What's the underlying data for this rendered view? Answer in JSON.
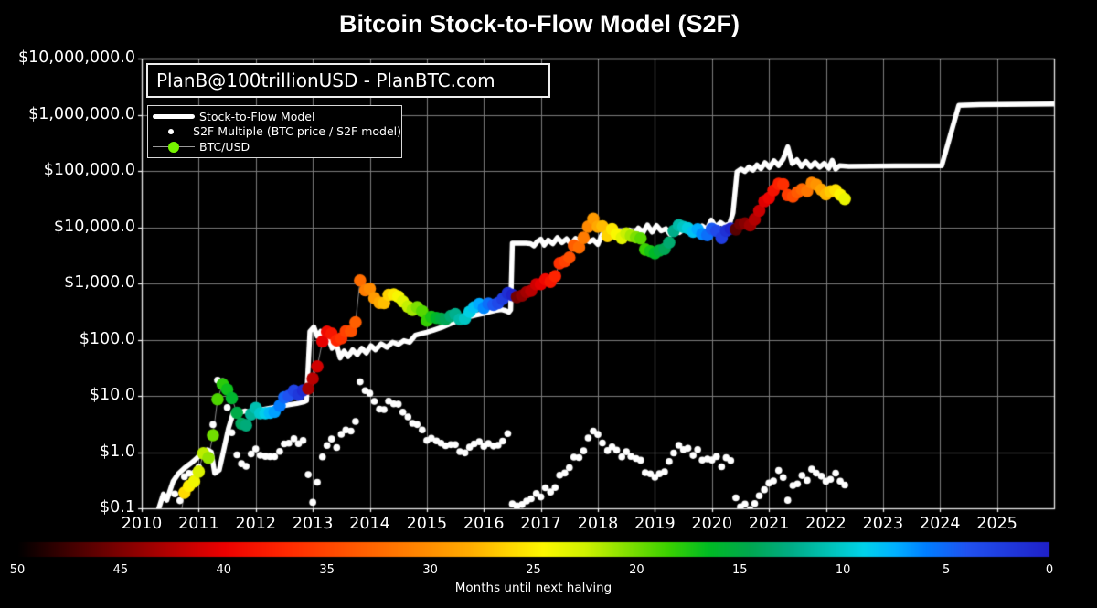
{
  "title": "Bitcoin Stock-to-Flow Model (S2F)",
  "annotation": "PlanB@100trillionUSD - PlanBTC.com",
  "legend": {
    "items": [
      {
        "label": "Stock-to-Flow Model",
        "marker": "thick-white-line",
        "color": "#ffffff"
      },
      {
        "label": "S2F Multiple (BTC price / S2F model)",
        "marker": "small-white-dot",
        "color": "#ffffff"
      },
      {
        "label": "BTC/USD",
        "marker": "green-dot-on-line",
        "color": "#76f400"
      }
    ]
  },
  "axes": {
    "y_ticks": [
      {
        "label": "$10,000,000.0",
        "value": 10000000
      },
      {
        "label": "$1,000,000.0",
        "value": 1000000
      },
      {
        "label": "$100,000.0",
        "value": 100000
      },
      {
        "label": "$10,000.0",
        "value": 10000
      },
      {
        "label": "$1,000.0",
        "value": 1000
      },
      {
        "label": "$100.0",
        "value": 100
      },
      {
        "label": "$10.0",
        "value": 10
      },
      {
        "label": "$1.0",
        "value": 1
      },
      {
        "label": "$0.1",
        "value": 0.1
      }
    ],
    "x_ticks": [
      2010,
      2011,
      2012,
      2013,
      2014,
      2015,
      2016,
      2017,
      2018,
      2019,
      2020,
      2021,
      2022,
      2023,
      2024,
      2025
    ],
    "x_range": [
      2010,
      2026
    ],
    "y_range": [
      0.1,
      10000000
    ],
    "y_scale": "log",
    "grid": true
  },
  "colorbar": {
    "caption": "Months until next halving",
    "ticks": [
      50,
      45,
      40,
      35,
      30,
      25,
      20,
      15,
      10,
      5,
      0
    ],
    "range": [
      50,
      0
    ],
    "stops": [
      [
        0.0,
        "#000000"
      ],
      [
        0.05,
        "#400000"
      ],
      [
        0.1,
        "#7e0000"
      ],
      [
        0.15,
        "#b60000"
      ],
      [
        0.2,
        "#ec0000"
      ],
      [
        0.26,
        "#ff2800"
      ],
      [
        0.32,
        "#ff5400"
      ],
      [
        0.38,
        "#ff8000"
      ],
      [
        0.44,
        "#ffae00"
      ],
      [
        0.48,
        "#ffda00"
      ],
      [
        0.51,
        "#fdf800"
      ],
      [
        0.55,
        "#d0f200"
      ],
      [
        0.59,
        "#84e000"
      ],
      [
        0.63,
        "#3cd200"
      ],
      [
        0.67,
        "#00bb24"
      ],
      [
        0.71,
        "#00a750"
      ],
      [
        0.75,
        "#00ac86"
      ],
      [
        0.79,
        "#00c4bc"
      ],
      [
        0.82,
        "#00d2ea"
      ],
      [
        0.85,
        "#00b2ff"
      ],
      [
        0.88,
        "#007eff"
      ],
      [
        0.92,
        "#2052f0"
      ],
      [
        1.0,
        "#1f20c8"
      ]
    ]
  },
  "chart_data": {
    "type": "line+scatter",
    "title": "Bitcoin Stock-to-Flow Model (S2F)",
    "halvings": [
      2012.912,
      2016.523,
      2020.362,
      2024.302
    ],
    "model_line": {
      "name": "Stock-to-Flow Model",
      "style": "thick-white-line, steps up ~10x at each halving",
      "points": [
        [
          2010.3,
          0.1
        ],
        [
          2010.38,
          0.18
        ],
        [
          2010.44,
          0.14
        ],
        [
          2010.55,
          0.3
        ],
        [
          2010.65,
          0.42
        ],
        [
          2010.75,
          0.52
        ],
        [
          2010.85,
          0.62
        ],
        [
          2010.95,
          0.75
        ],
        [
          2011.05,
          0.95
        ],
        [
          2011.15,
          1.1
        ],
        [
          2011.22,
          1.0
        ],
        [
          2011.28,
          0.42
        ],
        [
          2011.36,
          0.48
        ],
        [
          2011.44,
          1.1
        ],
        [
          2011.52,
          2.6
        ],
        [
          2011.6,
          4.8
        ],
        [
          2011.67,
          5.6
        ],
        [
          2011.74,
          5.1
        ],
        [
          2011.82,
          5.4
        ],
        [
          2011.9,
          5.0
        ],
        [
          2011.98,
          5.3
        ],
        [
          2012.12,
          5.7
        ],
        [
          2012.27,
          6.1
        ],
        [
          2012.42,
          6.5
        ],
        [
          2012.57,
          6.9
        ],
        [
          2012.72,
          7.3
        ],
        [
          2012.84,
          7.8
        ],
        [
          2012.89,
          8.2
        ],
        [
          2012.95,
          140
        ],
        [
          2013.02,
          168
        ],
        [
          2013.08,
          115
        ],
        [
          2013.14,
          140
        ],
        [
          2013.2,
          92
        ],
        [
          2013.27,
          112
        ],
        [
          2013.34,
          70
        ],
        [
          2013.41,
          88
        ],
        [
          2013.48,
          47
        ],
        [
          2013.55,
          63
        ],
        [
          2013.62,
          50
        ],
        [
          2013.7,
          66
        ],
        [
          2013.78,
          54
        ],
        [
          2013.86,
          70
        ],
        [
          2013.94,
          58
        ],
        [
          2014.02,
          78
        ],
        [
          2014.1,
          66
        ],
        [
          2014.2,
          84
        ],
        [
          2014.3,
          73
        ],
        [
          2014.4,
          90
        ],
        [
          2014.5,
          82
        ],
        [
          2014.6,
          96
        ],
        [
          2014.7,
          90
        ],
        [
          2014.8,
          120
        ],
        [
          2014.9,
          128
        ],
        [
          2015.0,
          135
        ],
        [
          2015.12,
          148
        ],
        [
          2015.26,
          165
        ],
        [
          2015.4,
          190
        ],
        [
          2015.55,
          220
        ],
        [
          2015.7,
          250
        ],
        [
          2015.85,
          272
        ],
        [
          2016.0,
          292
        ],
        [
          2016.1,
          312
        ],
        [
          2016.2,
          330
        ],
        [
          2016.3,
          345
        ],
        [
          2016.38,
          328
        ],
        [
          2016.44,
          308
        ],
        [
          2016.47,
          340
        ],
        [
          2016.5,
          5200
        ],
        [
          2016.62,
          5200
        ],
        [
          2016.74,
          5200
        ],
        [
          2016.82,
          5100
        ],
        [
          2016.88,
          4650
        ],
        [
          2016.94,
          5600
        ],
        [
          2017.0,
          6100
        ],
        [
          2017.06,
          4800
        ],
        [
          2017.13,
          5900
        ],
        [
          2017.21,
          5100
        ],
        [
          2017.29,
          6500
        ],
        [
          2017.37,
          5300
        ],
        [
          2017.45,
          6200
        ],
        [
          2017.53,
          5000
        ],
        [
          2017.61,
          6300
        ],
        [
          2017.69,
          5200
        ],
        [
          2017.77,
          6500
        ],
        [
          2017.85,
          5500
        ],
        [
          2017.92,
          6000
        ],
        [
          2018.0,
          4950
        ],
        [
          2018.07,
          7300
        ],
        [
          2018.15,
          6200
        ],
        [
          2018.23,
          7800
        ],
        [
          2018.31,
          6500
        ],
        [
          2018.39,
          8300
        ],
        [
          2018.47,
          7000
        ],
        [
          2018.55,
          8900
        ],
        [
          2018.63,
          7600
        ],
        [
          2018.71,
          9700
        ],
        [
          2018.79,
          8000
        ],
        [
          2018.87,
          10900
        ],
        [
          2018.95,
          8200
        ],
        [
          2019.03,
          10700
        ],
        [
          2019.11,
          8600
        ],
        [
          2019.19,
          9400
        ],
        [
          2019.27,
          7400
        ],
        [
          2019.35,
          9500
        ],
        [
          2019.43,
          8000
        ],
        [
          2019.51,
          9300
        ],
        [
          2019.59,
          8100
        ],
        [
          2019.67,
          9500
        ],
        [
          2019.75,
          8300
        ],
        [
          2019.83,
          10500
        ],
        [
          2019.91,
          9100
        ],
        [
          2019.99,
          13400
        ],
        [
          2020.07,
          10100
        ],
        [
          2020.15,
          12100
        ],
        [
          2020.23,
          10700
        ],
        [
          2020.31,
          11500
        ],
        [
          2020.37,
          18000
        ],
        [
          2020.44,
          96000
        ],
        [
          2020.51,
          108000
        ],
        [
          2020.58,
          98000
        ],
        [
          2020.65,
          118000
        ],
        [
          2020.72,
          103000
        ],
        [
          2020.79,
          128000
        ],
        [
          2020.86,
          110000
        ],
        [
          2020.93,
          140000
        ],
        [
          2021.01,
          115000
        ],
        [
          2021.09,
          152000
        ],
        [
          2021.17,
          125000
        ],
        [
          2021.25,
          163000
        ],
        [
          2021.33,
          268000
        ],
        [
          2021.41,
          135000
        ],
        [
          2021.49,
          158000
        ],
        [
          2021.57,
          120000
        ],
        [
          2021.65,
          147000
        ],
        [
          2021.73,
          118000
        ],
        [
          2021.81,
          141000
        ],
        [
          2021.89,
          117000
        ],
        [
          2021.97,
          137000
        ],
        [
          2022.05,
          112000
        ],
        [
          2022.11,
          154000
        ],
        [
          2022.17,
          108000
        ],
        [
          2022.24,
          124000
        ],
        [
          2022.4,
          121000
        ],
        [
          2023.2,
          122500
        ],
        [
          2024.03,
          124500
        ],
        [
          2024.33,
          1470000
        ],
        [
          2024.7,
          1510000
        ],
        [
          2026.0,
          1555000
        ]
      ]
    },
    "btc_monthly": {
      "name": "BTC/USD",
      "style": "large dots colored by months until next halving, thin gray connector line",
      "points": [
        [
          2010.58,
          0.06
        ],
        [
          2010.67,
          0.06
        ],
        [
          2010.75,
          0.19
        ],
        [
          2010.83,
          0.25
        ],
        [
          2010.92,
          0.3
        ],
        [
          2011.0,
          0.45
        ],
        [
          2011.08,
          0.95
        ],
        [
          2011.17,
          0.79
        ],
        [
          2011.25,
          2.0
        ],
        [
          2011.33,
          8.7
        ],
        [
          2011.42,
          16.1
        ],
        [
          2011.5,
          13.0
        ],
        [
          2011.58,
          9.1
        ],
        [
          2011.67,
          5.0
        ],
        [
          2011.75,
          3.2
        ],
        [
          2011.83,
          3.0
        ],
        [
          2011.92,
          4.7
        ],
        [
          2012.0,
          6.1
        ],
        [
          2012.08,
          4.9
        ],
        [
          2012.17,
          4.9
        ],
        [
          2012.25,
          5.0
        ],
        [
          2012.33,
          5.2
        ],
        [
          2012.42,
          6.7
        ],
        [
          2012.5,
          9.4
        ],
        [
          2012.58,
          10.0
        ],
        [
          2012.67,
          12.4
        ],
        [
          2012.75,
          10.5
        ],
        [
          2012.83,
          12.5
        ],
        [
          2012.92,
          13.5
        ],
        [
          2013.0,
          20.4
        ],
        [
          2013.08,
          33.4
        ],
        [
          2013.17,
          93
        ],
        [
          2013.25,
          139
        ],
        [
          2013.33,
          128
        ],
        [
          2013.42,
          97
        ],
        [
          2013.5,
          106
        ],
        [
          2013.58,
          141
        ],
        [
          2013.67,
          141
        ],
        [
          2013.75,
          204
        ],
        [
          2013.83,
          1130
        ],
        [
          2013.92,
          755
        ],
        [
          2014.0,
          806
        ],
        [
          2014.08,
          550
        ],
        [
          2014.17,
          454
        ],
        [
          2014.25,
          446
        ],
        [
          2014.33,
          627
        ],
        [
          2014.42,
          635
        ],
        [
          2014.5,
          583
        ],
        [
          2014.58,
          477
        ],
        [
          2014.67,
          387
        ],
        [
          2014.75,
          338
        ],
        [
          2014.83,
          378
        ],
        [
          2014.92,
          320
        ],
        [
          2015.0,
          217
        ],
        [
          2015.08,
          254
        ],
        [
          2015.17,
          244
        ],
        [
          2015.25,
          236
        ],
        [
          2015.33,
          230
        ],
        [
          2015.42,
          263
        ],
        [
          2015.5,
          284
        ],
        [
          2015.58,
          230
        ],
        [
          2015.67,
          236
        ],
        [
          2015.75,
          314
        ],
        [
          2015.83,
          377
        ],
        [
          2015.92,
          430
        ],
        [
          2016.0,
          368
        ],
        [
          2016.08,
          437
        ],
        [
          2016.17,
          416
        ],
        [
          2016.25,
          448
        ],
        [
          2016.33,
          531
        ],
        [
          2016.42,
          673
        ],
        [
          2016.5,
          624
        ],
        [
          2016.58,
          573
        ],
        [
          2016.67,
          609
        ],
        [
          2016.75,
          700
        ],
        [
          2016.83,
          742
        ],
        [
          2016.92,
          963
        ],
        [
          2017.0,
          970
        ],
        [
          2017.08,
          1179
        ],
        [
          2017.17,
          1071
        ],
        [
          2017.25,
          1347
        ],
        [
          2017.33,
          2286
        ],
        [
          2017.42,
          2480
        ],
        [
          2017.5,
          2875
        ],
        [
          2017.58,
          4703
        ],
        [
          2017.67,
          4360
        ],
        [
          2017.75,
          6468
        ],
        [
          2017.83,
          10233
        ],
        [
          2017.92,
          14156
        ],
        [
          2018.0,
          10221
        ],
        [
          2018.08,
          10397
        ],
        [
          2018.17,
          6973
        ],
        [
          2018.25,
          9240
        ],
        [
          2018.33,
          7494
        ],
        [
          2018.42,
          6404
        ],
        [
          2018.5,
          7780
        ],
        [
          2018.58,
          7037
        ],
        [
          2018.67,
          6625
        ],
        [
          2018.75,
          6317
        ],
        [
          2018.83,
          4017
        ],
        [
          2018.92,
          3742
        ],
        [
          2019.0,
          3457
        ],
        [
          2019.08,
          3854
        ],
        [
          2019.17,
          4105
        ],
        [
          2019.25,
          5350
        ],
        [
          2019.33,
          8574
        ],
        [
          2019.42,
          10817
        ],
        [
          2019.5,
          10085
        ],
        [
          2019.58,
          9630
        ],
        [
          2019.67,
          8308
        ],
        [
          2019.75,
          9199
        ],
        [
          2019.83,
          7569
        ],
        [
          2019.92,
          7193
        ],
        [
          2020.0,
          9350
        ],
        [
          2020.08,
          8599
        ],
        [
          2020.17,
          6438
        ],
        [
          2020.25,
          8658
        ],
        [
          2020.33,
          9461
        ],
        [
          2020.42,
          9137
        ],
        [
          2020.5,
          11323
        ],
        [
          2020.58,
          11680
        ],
        [
          2020.67,
          10784
        ],
        [
          2020.75,
          13797
        ],
        [
          2020.83,
          19625
        ],
        [
          2020.92,
          28993
        ],
        [
          2021.0,
          33114
        ],
        [
          2021.08,
          45137
        ],
        [
          2021.17,
          58918
        ],
        [
          2021.25,
          57750
        ],
        [
          2021.33,
          37332
        ],
        [
          2021.42,
          35040
        ],
        [
          2021.5,
          41626
        ],
        [
          2021.58,
          47166
        ],
        [
          2021.67,
          43790
        ],
        [
          2021.75,
          61318
        ],
        [
          2021.83,
          57005
        ],
        [
          2021.92,
          46306
        ],
        [
          2022.0,
          38483
        ],
        [
          2022.08,
          43193
        ],
        [
          2022.17,
          45538
        ],
        [
          2022.25,
          37714
        ],
        [
          2022.33,
          31792
        ]
      ]
    },
    "s2f_multiple": {
      "name": "S2F Multiple (BTC price / S2F model)",
      "style": "small white dots",
      "derived": "btc_price / model_value (per legend definition)"
    }
  }
}
